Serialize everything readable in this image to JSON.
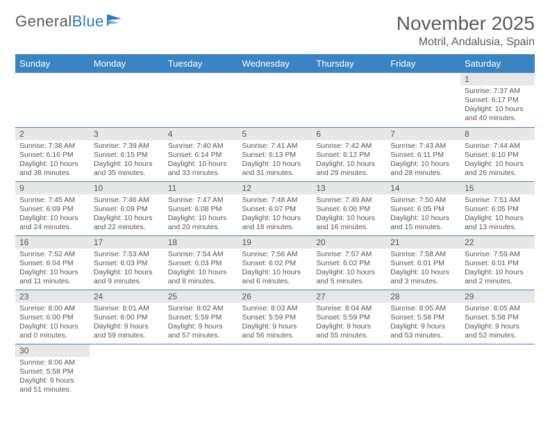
{
  "logo": {
    "text1": "General",
    "text2": "Blue"
  },
  "title": "November 2025",
  "location": "Motril, Andalusia, Spain",
  "colors": {
    "header_bg": "#3b84c4",
    "header_text": "#ffffff",
    "daynum_bg": "#e7e7e7",
    "cell_border": "#3b84c4",
    "text": "#555555",
    "logo_blue": "#2b7bbf"
  },
  "weekdays": [
    "Sunday",
    "Monday",
    "Tuesday",
    "Wednesday",
    "Thursday",
    "Friday",
    "Saturday"
  ],
  "weeks": [
    [
      null,
      null,
      null,
      null,
      null,
      null,
      {
        "n": "1",
        "sunrise": "Sunrise: 7:37 AM",
        "sunset": "Sunset: 6:17 PM",
        "daylight": "Daylight: 10 hours and 40 minutes."
      }
    ],
    [
      {
        "n": "2",
        "sunrise": "Sunrise: 7:38 AM",
        "sunset": "Sunset: 6:16 PM",
        "daylight": "Daylight: 10 hours and 38 minutes."
      },
      {
        "n": "3",
        "sunrise": "Sunrise: 7:39 AM",
        "sunset": "Sunset: 6:15 PM",
        "daylight": "Daylight: 10 hours and 35 minutes."
      },
      {
        "n": "4",
        "sunrise": "Sunrise: 7:40 AM",
        "sunset": "Sunset: 6:14 PM",
        "daylight": "Daylight: 10 hours and 33 minutes."
      },
      {
        "n": "5",
        "sunrise": "Sunrise: 7:41 AM",
        "sunset": "Sunset: 6:13 PM",
        "daylight": "Daylight: 10 hours and 31 minutes."
      },
      {
        "n": "6",
        "sunrise": "Sunrise: 7:42 AM",
        "sunset": "Sunset: 6:12 PM",
        "daylight": "Daylight: 10 hours and 29 minutes."
      },
      {
        "n": "7",
        "sunrise": "Sunrise: 7:43 AM",
        "sunset": "Sunset: 6:11 PM",
        "daylight": "Daylight: 10 hours and 28 minutes."
      },
      {
        "n": "8",
        "sunrise": "Sunrise: 7:44 AM",
        "sunset": "Sunset: 6:10 PM",
        "daylight": "Daylight: 10 hours and 26 minutes."
      }
    ],
    [
      {
        "n": "9",
        "sunrise": "Sunrise: 7:45 AM",
        "sunset": "Sunset: 6:09 PM",
        "daylight": "Daylight: 10 hours and 24 minutes."
      },
      {
        "n": "10",
        "sunrise": "Sunrise: 7:46 AM",
        "sunset": "Sunset: 6:09 PM",
        "daylight": "Daylight: 10 hours and 22 minutes."
      },
      {
        "n": "11",
        "sunrise": "Sunrise: 7:47 AM",
        "sunset": "Sunset: 6:08 PM",
        "daylight": "Daylight: 10 hours and 20 minutes."
      },
      {
        "n": "12",
        "sunrise": "Sunrise: 7:48 AM",
        "sunset": "Sunset: 6:07 PM",
        "daylight": "Daylight: 10 hours and 18 minutes."
      },
      {
        "n": "13",
        "sunrise": "Sunrise: 7:49 AM",
        "sunset": "Sunset: 6:06 PM",
        "daylight": "Daylight: 10 hours and 16 minutes."
      },
      {
        "n": "14",
        "sunrise": "Sunrise: 7:50 AM",
        "sunset": "Sunset: 6:05 PM",
        "daylight": "Daylight: 10 hours and 15 minutes."
      },
      {
        "n": "15",
        "sunrise": "Sunrise: 7:51 AM",
        "sunset": "Sunset: 6:05 PM",
        "daylight": "Daylight: 10 hours and 13 minutes."
      }
    ],
    [
      {
        "n": "16",
        "sunrise": "Sunrise: 7:52 AM",
        "sunset": "Sunset: 6:04 PM",
        "daylight": "Daylight: 10 hours and 11 minutes."
      },
      {
        "n": "17",
        "sunrise": "Sunrise: 7:53 AM",
        "sunset": "Sunset: 6:03 PM",
        "daylight": "Daylight: 10 hours and 9 minutes."
      },
      {
        "n": "18",
        "sunrise": "Sunrise: 7:54 AM",
        "sunset": "Sunset: 6:03 PM",
        "daylight": "Daylight: 10 hours and 8 minutes."
      },
      {
        "n": "19",
        "sunrise": "Sunrise: 7:56 AM",
        "sunset": "Sunset: 6:02 PM",
        "daylight": "Daylight: 10 hours and 6 minutes."
      },
      {
        "n": "20",
        "sunrise": "Sunrise: 7:57 AM",
        "sunset": "Sunset: 6:02 PM",
        "daylight": "Daylight: 10 hours and 5 minutes."
      },
      {
        "n": "21",
        "sunrise": "Sunrise: 7:58 AM",
        "sunset": "Sunset: 6:01 PM",
        "daylight": "Daylight: 10 hours and 3 minutes."
      },
      {
        "n": "22",
        "sunrise": "Sunrise: 7:59 AM",
        "sunset": "Sunset: 6:01 PM",
        "daylight": "Daylight: 10 hours and 2 minutes."
      }
    ],
    [
      {
        "n": "23",
        "sunrise": "Sunrise: 8:00 AM",
        "sunset": "Sunset: 6:00 PM",
        "daylight": "Daylight: 10 hours and 0 minutes."
      },
      {
        "n": "24",
        "sunrise": "Sunrise: 8:01 AM",
        "sunset": "Sunset: 6:00 PM",
        "daylight": "Daylight: 9 hours and 59 minutes."
      },
      {
        "n": "25",
        "sunrise": "Sunrise: 8:02 AM",
        "sunset": "Sunset: 5:59 PM",
        "daylight": "Daylight: 9 hours and 57 minutes."
      },
      {
        "n": "26",
        "sunrise": "Sunrise: 8:03 AM",
        "sunset": "Sunset: 5:59 PM",
        "daylight": "Daylight: 9 hours and 56 minutes."
      },
      {
        "n": "27",
        "sunrise": "Sunrise: 8:04 AM",
        "sunset": "Sunset: 5:59 PM",
        "daylight": "Daylight: 9 hours and 55 minutes."
      },
      {
        "n": "28",
        "sunrise": "Sunrise: 8:05 AM",
        "sunset": "Sunset: 5:58 PM",
        "daylight": "Daylight: 9 hours and 53 minutes."
      },
      {
        "n": "29",
        "sunrise": "Sunrise: 8:05 AM",
        "sunset": "Sunset: 5:58 PM",
        "daylight": "Daylight: 9 hours and 52 minutes."
      }
    ],
    [
      {
        "n": "30",
        "sunrise": "Sunrise: 8:06 AM",
        "sunset": "Sunset: 5:58 PM",
        "daylight": "Daylight: 9 hours and 51 minutes."
      },
      null,
      null,
      null,
      null,
      null,
      null
    ]
  ]
}
